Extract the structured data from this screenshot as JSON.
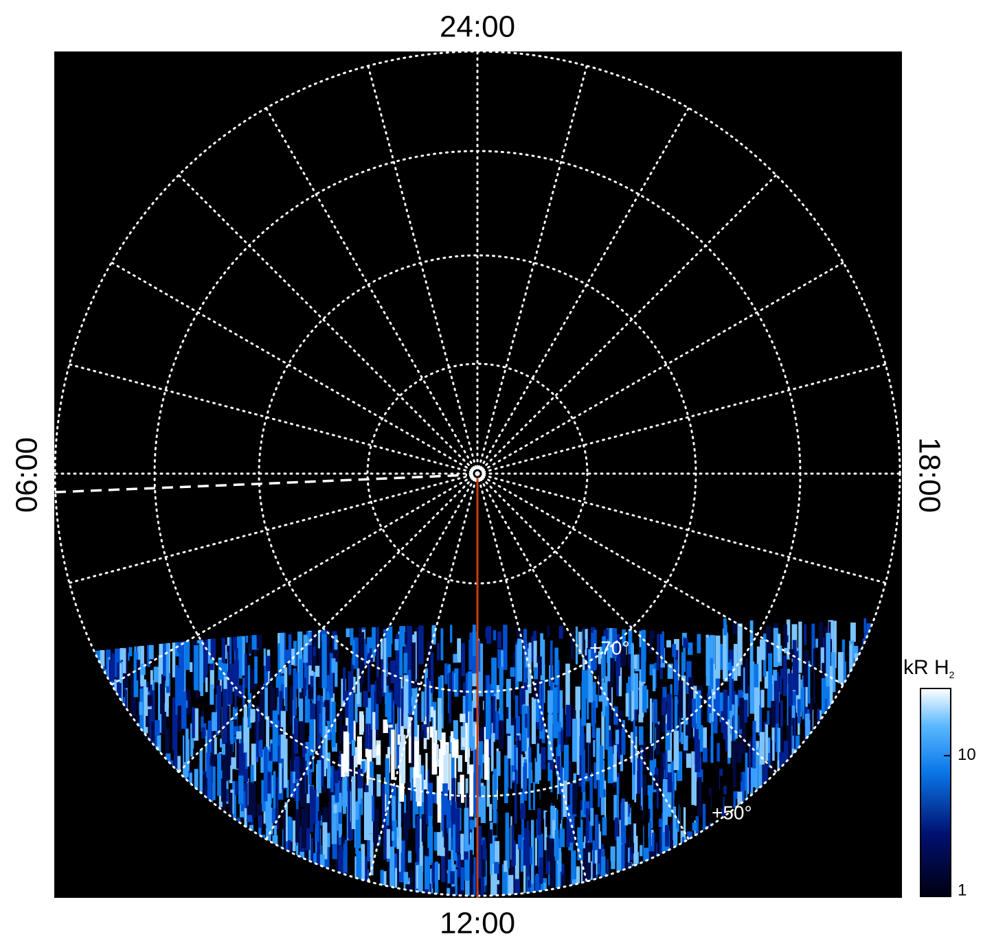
{
  "plot": {
    "local_times": {
      "top": "24:00",
      "bottom": "12:00",
      "left": "06:00",
      "right": "18:00"
    },
    "latitude_labels": [
      "+70°",
      "+50°"
    ]
  },
  "colorbar": {
    "label": "kR H",
    "label_subscript": "2",
    "scale": "log",
    "lim": [
      1,
      30
    ],
    "ticks": [
      1,
      10
    ]
  }
}
